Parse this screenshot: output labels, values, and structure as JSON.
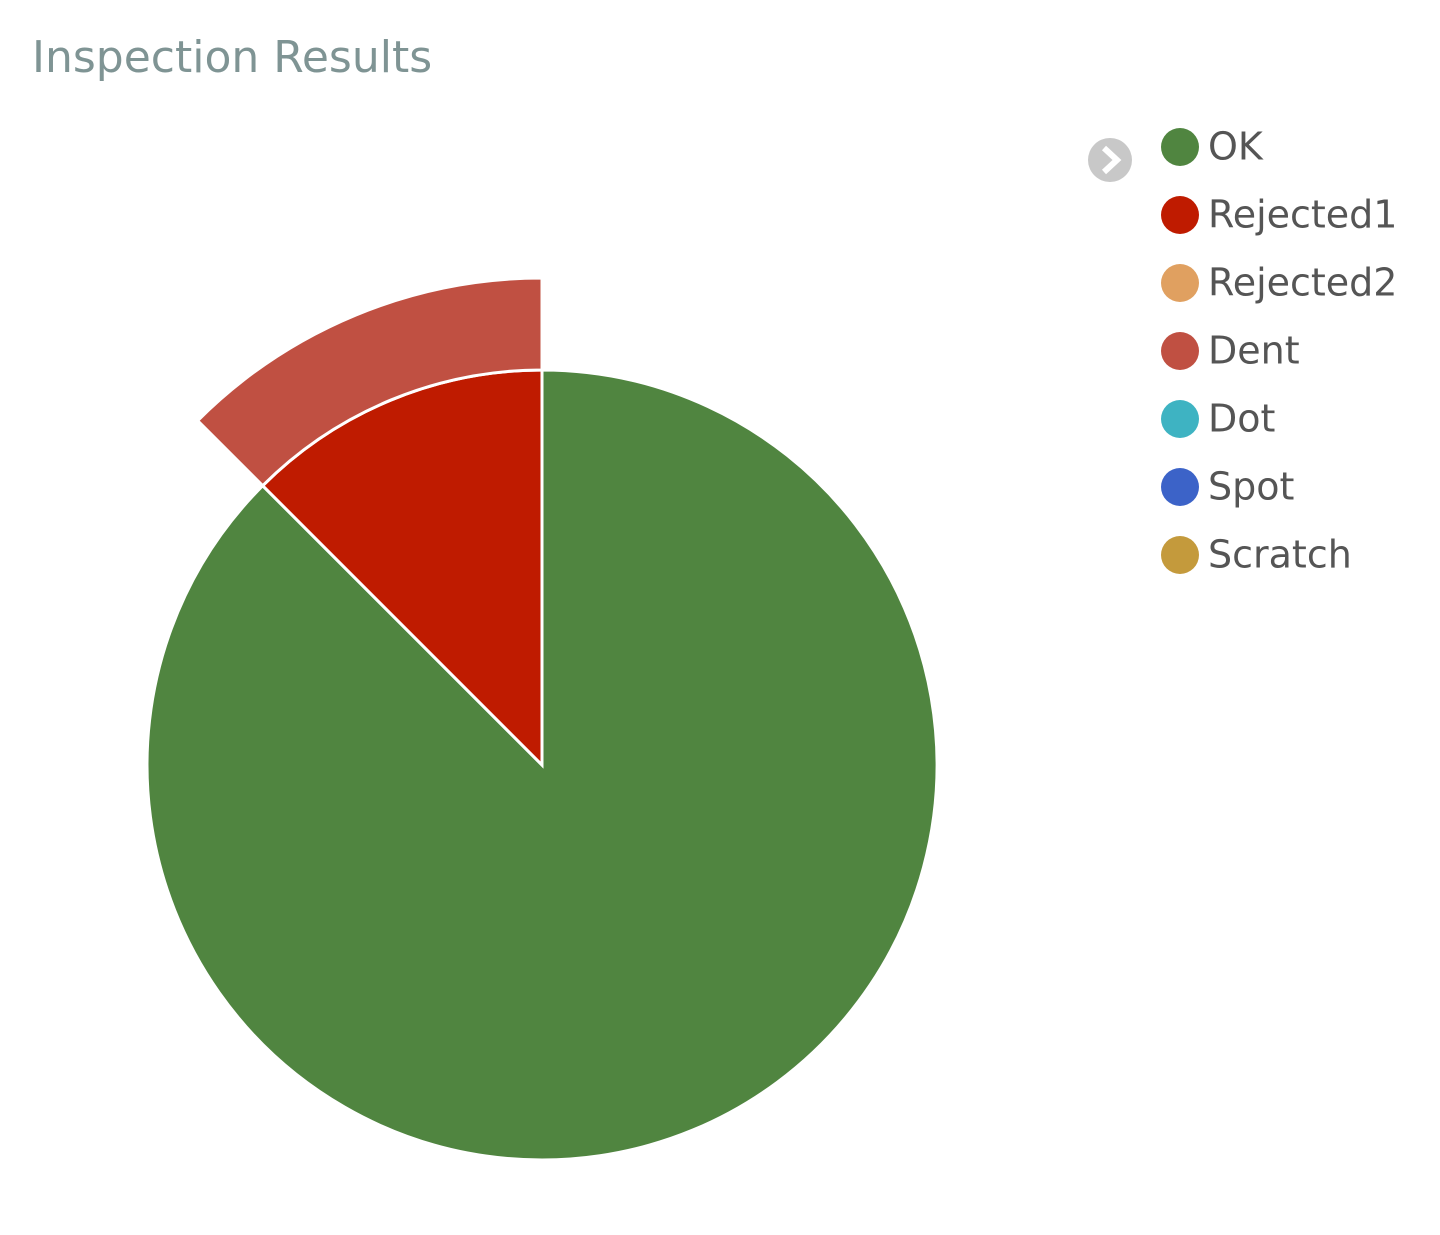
{
  "chart_data": {
    "type": "pie",
    "title": "Inspection Results",
    "series": [
      {
        "name": "OK",
        "color": "#508540",
        "value": 87.5,
        "ring": 1
      },
      {
        "name": "Rejected1",
        "color": "#bf1b00",
        "value": 12.5,
        "ring": 1
      },
      {
        "name": "Rejected2",
        "color": "#e0a060",
        "value": 0,
        "ring": 1
      },
      {
        "name": "Dent",
        "color": "#c05042",
        "value": 12.5,
        "ring": 2,
        "parent": "Rejected1"
      },
      {
        "name": "Dot",
        "color": "#3eb3c2",
        "value": 0,
        "ring": 2,
        "parent": "Rejected1"
      },
      {
        "name": "Spot",
        "color": "#3c63c8",
        "value": 0,
        "ring": 2,
        "parent": "Rejected1"
      },
      {
        "name": "Scratch",
        "color": "#c49a3c",
        "value": 0,
        "ring": 2,
        "parent": "Rejected1"
      }
    ],
    "legend": "top-right"
  }
}
